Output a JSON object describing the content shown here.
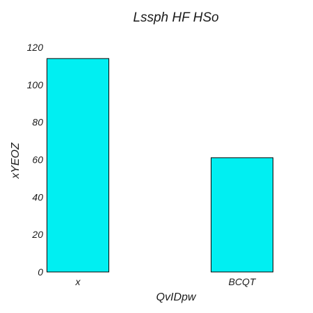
{
  "chart_data": {
    "type": "bar",
    "title": "Lssph HF HSo",
    "xlabel": "QvIDpw",
    "ylabel": "xYEOZ",
    "categories": [
      "x",
      "BCQT"
    ],
    "values": [
      114,
      61
    ],
    "ylim": [
      0,
      120
    ],
    "yticks": [
      0,
      20,
      40,
      60,
      80,
      100,
      120
    ],
    "grid": false,
    "legend": "none",
    "bar_color": "#00eff2",
    "edge_color": "#000000"
  }
}
